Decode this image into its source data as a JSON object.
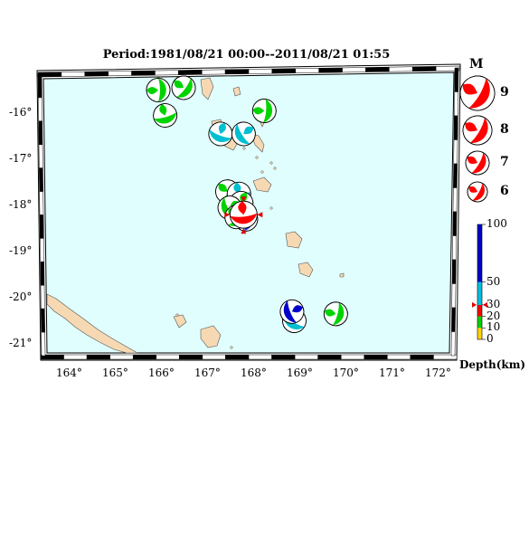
{
  "title": "Period:1981/08/21 00:00--2011/08/21 01:55",
  "map": {
    "longitude_ticks": [
      "164°",
      "165°",
      "166°",
      "167°",
      "168°",
      "169°",
      "170°",
      "171°",
      "172°"
    ],
    "latitude_ticks": [
      "-16°",
      "-17°",
      "-18°",
      "-19°",
      "-20°",
      "-21°"
    ],
    "ocean_color": "#e0fefe",
    "land_color": "#f6d9b3"
  },
  "events": [
    {
      "lon": 166.0,
      "lat": -15.5,
      "depth_range": "10-20",
      "color": "#00d400",
      "newest": false
    },
    {
      "lon": 166.55,
      "lat": -15.45,
      "depth_range": "10-20",
      "color": "#00d400",
      "newest": false
    },
    {
      "lon": 166.15,
      "lat": -16.05,
      "depth_range": "10-20",
      "color": "#00d400",
      "newest": false
    },
    {
      "lon": 167.35,
      "lat": -16.45,
      "depth_range": "30-50",
      "color": "#00bfd0",
      "newest": false
    },
    {
      "lon": 167.85,
      "lat": -16.45,
      "depth_range": "30-50",
      "color": "#00bfd0",
      "newest": false
    },
    {
      "lon": 168.3,
      "lat": -15.95,
      "depth_range": "10-20",
      "color": "#00d400",
      "newest": false
    },
    {
      "lon": 167.5,
      "lat": -17.7,
      "depth_range": "10-20",
      "color": "#00d400",
      "newest": false
    },
    {
      "lon": 167.75,
      "lat": -17.75,
      "depth_range": "30-50",
      "color": "#00bfd0",
      "newest": false
    },
    {
      "lon": 167.8,
      "lat": -17.95,
      "depth_range": "10-20",
      "color": "#00d400",
      "newest": false
    },
    {
      "lon": 167.55,
      "lat": -18.05,
      "depth_range": "10-20",
      "color": "#00d400",
      "newest": false
    },
    {
      "lon": 167.9,
      "lat": -18.3,
      "depth_range": "50-100",
      "color": "#1030ff",
      "newest": false
    },
    {
      "lon": 167.7,
      "lat": -18.25,
      "depth_range": "10-20",
      "color": "#00d400",
      "newest": false
    },
    {
      "lon": 167.85,
      "lat": -18.2,
      "depth_range": "20-30",
      "color": "#ff0000",
      "newest": true
    },
    {
      "lon": 168.95,
      "lat": -20.5,
      "depth_range": "30-50",
      "color": "#00bfd0",
      "newest": false
    },
    {
      "lon": 168.9,
      "lat": -20.3,
      "depth_range": "50-100",
      "color": "#0000cc",
      "newest": false
    },
    {
      "lon": 169.85,
      "lat": -20.35,
      "depth_range": "10-20",
      "color": "#00d400",
      "newest": false
    }
  ],
  "magnitude_legend": {
    "title": "M",
    "items": [
      {
        "label": "9",
        "value": 9
      },
      {
        "label": "8",
        "value": 8
      },
      {
        "label": "7",
        "value": 7
      },
      {
        "label": "6",
        "value": 6
      }
    ]
  },
  "depth_legend": {
    "title": "Depth(km)",
    "ticks": [
      "100",
      "50",
      "30",
      "20",
      "10",
      "0"
    ],
    "bands": [
      {
        "from": 0,
        "to": 10,
        "color": "#ffd400"
      },
      {
        "from": 10,
        "to": 20,
        "color": "#00d400"
      },
      {
        "from": 20,
        "to": 30,
        "color": "#ff0000"
      },
      {
        "from": 30,
        "to": 50,
        "color": "#00bfe0"
      },
      {
        "from": 50,
        "to": 100,
        "color": "#0000cc"
      }
    ],
    "marker_depth": 30,
    "marker_color": "#e00000"
  }
}
